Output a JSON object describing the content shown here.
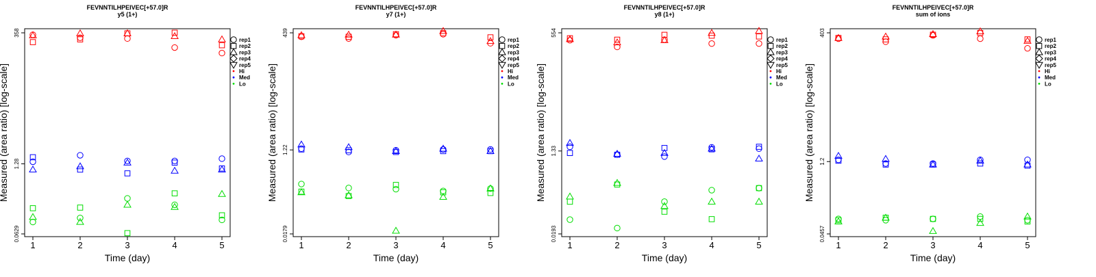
{
  "legend": {
    "shapes": [
      {
        "label": "rep1",
        "symbol": "circle"
      },
      {
        "label": "rep2",
        "symbol": "square"
      },
      {
        "label": "rep3",
        "symbol": "triangle-up"
      },
      {
        "label": "rep4",
        "symbol": "diamond"
      },
      {
        "label": "rep5",
        "symbol": "triangle-down"
      }
    ],
    "colors": [
      {
        "label": "Hi",
        "color": "#ff0000"
      },
      {
        "label": "Med",
        "color": "#0000ff"
      },
      {
        "label": "Lo",
        "color": "#00dd00"
      }
    ]
  },
  "chart_data": [
    {
      "type": "scatter",
      "title": "FEVNNTILHPEIVEC[+57.0]R",
      "subtitle": "y5 (1+)",
      "xlabel": "Time (day)",
      "ylabel": "Measured (area ratio) [log-scale]",
      "y_scale": "log",
      "xlim": [
        1,
        5
      ],
      "ylim": [
        0.0629,
        358
      ],
      "x_ticks": [
        "1",
        "2",
        "3",
        "4",
        "5"
      ],
      "y_ticks": [
        "0.0629",
        "1.28",
        "358"
      ],
      "series": [
        {
          "name": "rep1",
          "level": "Hi",
          "x": [
            1,
            2,
            3,
            4,
            5
          ],
          "y": [
            330,
            290,
            280,
            190,
            150
          ]
        },
        {
          "name": "rep2",
          "level": "Hi",
          "x": [
            1,
            2,
            3,
            4,
            5
          ],
          "y": [
            240,
            270,
            350,
            360,
            210
          ]
        },
        {
          "name": "rep3",
          "level": "Hi",
          "x": [
            1,
            2,
            3,
            4,
            5
          ],
          "y": [
            320,
            350,
            350,
            310,
            270
          ]
        },
        {
          "name": "rep1",
          "level": "Med",
          "x": [
            1,
            2,
            3,
            4,
            5
          ],
          "y": [
            1.4,
            1.85,
            1.45,
            1.45,
            1.6
          ]
        },
        {
          "name": "rep2",
          "level": "Med",
          "x": [
            1,
            2,
            3,
            4,
            5
          ],
          "y": [
            1.7,
            1.0,
            0.85,
            1.35,
            1.05
          ]
        },
        {
          "name": "rep3",
          "level": "Med",
          "x": [
            1,
            2,
            3,
            4,
            5
          ],
          "y": [
            1.0,
            1.15,
            1.35,
            0.95,
            1.0
          ]
        },
        {
          "name": "rep1",
          "level": "Lo",
          "x": [
            1,
            2,
            3,
            4,
            5
          ],
          "y": [
            0.105,
            0.125,
            0.29,
            0.22,
            0.115
          ]
        },
        {
          "name": "rep2",
          "level": "Lo",
          "x": [
            1,
            2,
            3,
            4,
            5
          ],
          "y": [
            0.19,
            0.195,
            0.065,
            0.36,
            0.14
          ]
        },
        {
          "name": "rep3",
          "level": "Lo",
          "x": [
            1,
            2,
            3,
            4,
            5
          ],
          "y": [
            0.13,
            0.105,
            0.22,
            0.2,
            0.35
          ]
        }
      ]
    },
    {
      "type": "scatter",
      "title": "FEVNNTILHPEIVEC[+57.0]R",
      "subtitle": "y7 (1+)",
      "xlabel": "Time (day)",
      "ylabel": "Measured (area ratio) [log-scale]",
      "y_scale": "log",
      "xlim": [
        1,
        5
      ],
      "ylim": [
        0.0179,
        439
      ],
      "x_ticks": [
        "1",
        "2",
        "3",
        "4",
        "5"
      ],
      "y_ticks": [
        "0.0179",
        "1.22",
        "439"
      ],
      "series": [
        {
          "name": "rep1",
          "level": "Hi",
          "x": [
            1,
            2,
            3,
            4,
            5
          ],
          "y": [
            360,
            330,
            390,
            410,
            260
          ]
        },
        {
          "name": "rep2",
          "level": "Hi",
          "x": [
            1,
            2,
            3,
            4,
            5
          ],
          "y": [
            370,
            360,
            410,
            430,
            350
          ]
        },
        {
          "name": "rep3",
          "level": "Hi",
          "x": [
            1,
            2,
            3,
            4,
            5
          ],
          "y": [
            390,
            400,
            400,
            480,
            290
          ]
        },
        {
          "name": "rep1",
          "level": "Med",
          "x": [
            1,
            2,
            3,
            4,
            5
          ],
          "y": [
            1.3,
            1.1,
            1.2,
            1.25,
            1.25
          ]
        },
        {
          "name": "rep2",
          "level": "Med",
          "x": [
            1,
            2,
            3,
            4,
            5
          ],
          "y": [
            1.25,
            1.2,
            1.1,
            1.15,
            1.15
          ]
        },
        {
          "name": "rep3",
          "level": "Med",
          "x": [
            1,
            2,
            3,
            4,
            5
          ],
          "y": [
            1.6,
            1.4,
            1.15,
            1.3,
            1.15
          ]
        },
        {
          "name": "rep1",
          "level": "Lo",
          "x": [
            1,
            2,
            3,
            4,
            5
          ],
          "y": [
            0.22,
            0.18,
            0.17,
            0.155,
            0.175
          ]
        },
        {
          "name": "rep2",
          "level": "Lo",
          "x": [
            1,
            2,
            3,
            4,
            5
          ],
          "y": [
            0.15,
            0.12,
            0.21,
            0.145,
            0.14
          ]
        },
        {
          "name": "rep3",
          "level": "Lo",
          "x": [
            1,
            2,
            3,
            4,
            5
          ],
          "y": [
            0.145,
            0.125,
            0.021,
            0.115,
            0.175
          ]
        }
      ]
    },
    {
      "type": "scatter",
      "title": "FEVNNTILHPEIVEC[+57.0]R",
      "subtitle": "y8 (1+)",
      "xlabel": "Time (day)",
      "ylabel": "Measured (area ratio) [log-scale]",
      "y_scale": "log",
      "xlim": [
        1,
        5
      ],
      "ylim": [
        0.0193,
        554
      ],
      "x_ticks": [
        "1",
        "2",
        "3",
        "4",
        "5"
      ],
      "y_ticks": [
        "0.0193",
        "1.33",
        "554"
      ],
      "series": [
        {
          "name": "rep1",
          "level": "Hi",
          "x": [
            1,
            2,
            3,
            4,
            5
          ],
          "y": [
            380,
            270,
            390,
            320,
            320
          ]
        },
        {
          "name": "rep2",
          "level": "Hi",
          "x": [
            1,
            2,
            3,
            4,
            5
          ],
          "y": [
            420,
            390,
            500,
            480,
            460
          ]
        },
        {
          "name": "rep3",
          "level": "Hi",
          "x": [
            1,
            2,
            3,
            4,
            5
          ],
          "y": [
            400,
            340,
            380,
            550,
            610
          ]
        },
        {
          "name": "rep1",
          "level": "Med",
          "x": [
            1,
            2,
            3,
            4,
            5
          ],
          "y": [
            1.65,
            1.1,
            1.0,
            1.6,
            1.5
          ]
        },
        {
          "name": "rep2",
          "level": "Med",
          "x": [
            1,
            2,
            3,
            4,
            5
          ],
          "y": [
            1.2,
            1.1,
            1.55,
            1.45,
            1.65
          ]
        },
        {
          "name": "rep3",
          "level": "Med",
          "x": [
            1,
            2,
            3,
            4,
            5
          ],
          "y": [
            2.0,
            1.15,
            1.2,
            1.5,
            0.9
          ]
        },
        {
          "name": "rep1",
          "level": "Lo",
          "x": [
            1,
            2,
            3,
            4,
            5
          ],
          "y": [
            0.04,
            0.026,
            0.1,
            0.18,
            0.2
          ]
        },
        {
          "name": "rep2",
          "level": "Lo",
          "x": [
            1,
            2,
            3,
            4,
            5
          ],
          "y": [
            0.1,
            0.24,
            0.06,
            0.041,
            0.2
          ]
        },
        {
          "name": "rep3",
          "level": "Lo",
          "x": [
            1,
            2,
            3,
            4,
            5
          ],
          "y": [
            0.13,
            0.26,
            0.08,
            0.1,
            0.1
          ]
        }
      ]
    },
    {
      "type": "scatter",
      "title": "FEVNNTILHPEIVEC[+57.0]R",
      "subtitle": "sum of ions",
      "xlabel": "Time (day)",
      "ylabel": "Measured (area ratio) [log-scale]",
      "y_scale": "log",
      "xlim": [
        1,
        5
      ],
      "ylim": [
        0.0457,
        403
      ],
      "x_ticks": [
        "1",
        "2",
        "3",
        "4",
        "5"
      ],
      "y_ticks": [
        "0.0457",
        "1.2",
        "403"
      ],
      "series": [
        {
          "name": "rep1",
          "level": "Hi",
          "x": [
            1,
            2,
            3,
            4,
            5
          ],
          "y": [
            310,
            270,
            360,
            310,
            200
          ]
        },
        {
          "name": "rep2",
          "level": "Hi",
          "x": [
            1,
            2,
            3,
            4,
            5
          ],
          "y": [
            320,
            300,
            370,
            400,
            300
          ]
        },
        {
          "name": "rep3",
          "level": "Hi",
          "x": [
            1,
            2,
            3,
            4,
            5
          ],
          "y": [
            320,
            340,
            380,
            430,
            280
          ]
        },
        {
          "name": "rep1",
          "level": "Med",
          "x": [
            1,
            2,
            3,
            4,
            5
          ],
          "y": [
            1.3,
            1.1,
            1.1,
            1.3,
            1.3
          ]
        },
        {
          "name": "rep2",
          "level": "Med",
          "x": [
            1,
            2,
            3,
            4,
            5
          ],
          "y": [
            1.25,
            1.05,
            1.05,
            1.1,
            1.0
          ]
        },
        {
          "name": "rep3",
          "level": "Med",
          "x": [
            1,
            2,
            3,
            4,
            5
          ],
          "y": [
            1.55,
            1.35,
            1.05,
            1.25,
            1.05
          ]
        },
        {
          "name": "rep1",
          "level": "Lo",
          "x": [
            1,
            2,
            3,
            4,
            5
          ],
          "y": [
            0.09,
            0.085,
            0.09,
            0.1,
            0.085
          ]
        },
        {
          "name": "rep2",
          "level": "Lo",
          "x": [
            1,
            2,
            3,
            4,
            5
          ],
          "y": [
            0.085,
            0.095,
            0.09,
            0.09,
            0.08
          ]
        },
        {
          "name": "rep3",
          "level": "Lo",
          "x": [
            1,
            2,
            3,
            4,
            5
          ],
          "y": [
            0.08,
            0.095,
            0.052,
            0.075,
            0.1
          ]
        }
      ]
    }
  ]
}
